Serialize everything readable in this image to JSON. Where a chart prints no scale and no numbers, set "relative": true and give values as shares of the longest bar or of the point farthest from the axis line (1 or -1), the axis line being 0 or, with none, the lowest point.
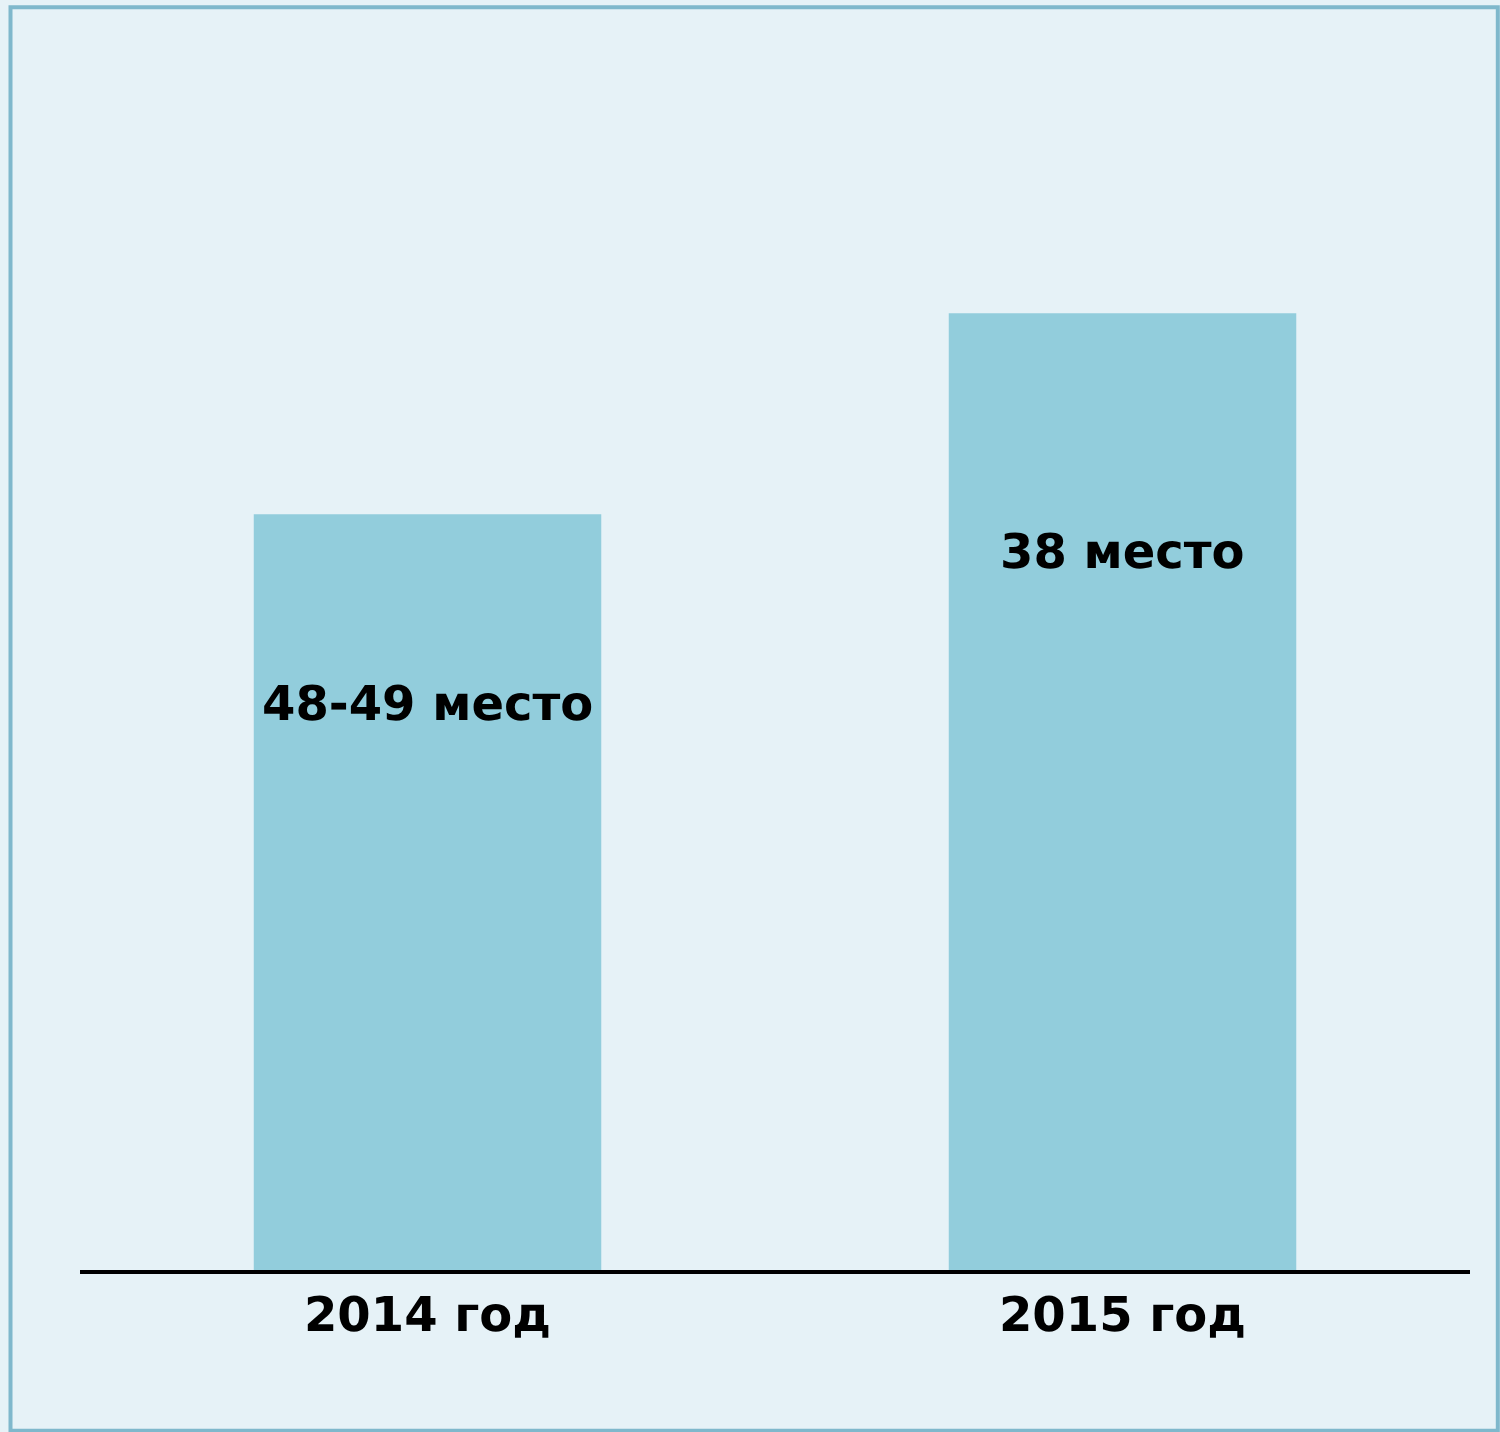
{
  "chart_data": {
    "type": "bar",
    "relative": true,
    "categories": [
      "2014 год",
      "2015 год"
    ],
    "values": [
      0.79,
      1
    ],
    "annotations": [
      "48-49 место",
      "38 место"
    ],
    "color": "#92cddc"
  }
}
